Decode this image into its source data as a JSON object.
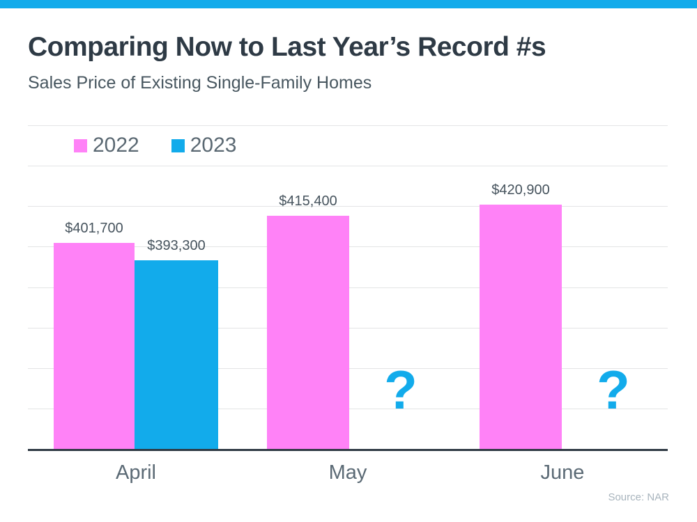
{
  "page": {
    "accent_color": "#12abeb",
    "title": "Comparing Now to Last Year’s Record #s",
    "subtitle": "Sales Price of Existing Single-Family Homes",
    "source": "Source: NAR"
  },
  "legend": {
    "items": [
      {
        "label": "2022",
        "color": "#ff82f7"
      },
      {
        "label": "2023",
        "color": "#12abeb"
      }
    ]
  },
  "chart_data": {
    "type": "bar",
    "title": "Comparing Now to Last Year's Record #s",
    "subtitle": "Sales Price of Existing Single-Family Homes",
    "categories": [
      "April",
      "May",
      "June"
    ],
    "series": [
      {
        "name": "2022",
        "color": "#ff82f7",
        "values": [
          401700,
          415400,
          420900
        ],
        "value_labels": [
          "$401,700",
          "$415,400",
          "$420,900"
        ]
      },
      {
        "name": "2023",
        "color": "#12abeb",
        "values": [
          393300,
          null,
          null
        ],
        "value_labels": [
          "$393,300",
          null,
          null
        ]
      }
    ],
    "unknown_marker": "?",
    "value_axis": {
      "min": 300000,
      "max": 460000,
      "gridline_step": 20000,
      "gridlines_visible": true,
      "tick_labels_visible": false
    },
    "legend_position": "top-left",
    "source": "Source: NAR"
  }
}
